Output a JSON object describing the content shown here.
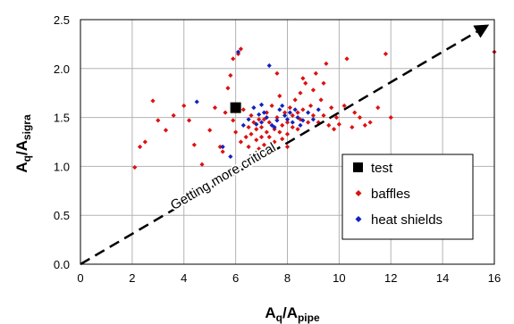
{
  "chart_data": {
    "type": "scatter",
    "xlim": [
      0,
      16
    ],
    "ylim": [
      0,
      2.5
    ],
    "x_ticks": [
      "0",
      "2",
      "4",
      "6",
      "8",
      "10",
      "12",
      "14",
      "16"
    ],
    "y_ticks": [
      "0.0",
      "0.5",
      "1.0",
      "1.5",
      "2.0",
      "2.5"
    ],
    "x_tick_values": [
      0,
      2,
      4,
      6,
      8,
      10,
      12,
      14,
      16
    ],
    "y_tick_values": [
      0,
      0.5,
      1.0,
      1.5,
      2.0,
      2.5
    ],
    "xlabel": {
      "main": "A",
      "sub1": "q",
      "sep": "/A",
      "sub2": "pipe"
    },
    "ylabel": {
      "main": "A",
      "sub1": "q",
      "sep": "/A",
      "sub2": "sigra"
    },
    "grid": true,
    "legend_position": "bottom-right",
    "annotation": {
      "text": "Getting more critical",
      "arrow_from": [
        0,
        0
      ],
      "arrow_to": [
        15.8,
        2.45
      ]
    },
    "series": [
      {
        "name": "test",
        "marker": "square",
        "color": "#000000",
        "points": [
          [
            6.0,
            1.6
          ]
        ]
      },
      {
        "name": "baffles",
        "marker": "diamond",
        "color": "#dd1111",
        "points": [
          [
            2.1,
            0.99
          ],
          [
            2.3,
            1.2
          ],
          [
            2.5,
            1.25
          ],
          [
            2.8,
            1.67
          ],
          [
            3.0,
            1.47
          ],
          [
            3.3,
            1.37
          ],
          [
            3.6,
            1.52
          ],
          [
            4.0,
            1.62
          ],
          [
            4.2,
            1.47
          ],
          [
            4.4,
            1.22
          ],
          [
            4.7,
            1.02
          ],
          [
            5.0,
            1.37
          ],
          [
            5.2,
            1.6
          ],
          [
            5.4,
            1.2
          ],
          [
            5.5,
            1.15
          ],
          [
            5.6,
            1.55
          ],
          [
            5.7,
            1.8
          ],
          [
            5.8,
            1.93
          ],
          [
            5.9,
            1.47
          ],
          [
            5.9,
            2.1
          ],
          [
            6.0,
            1.35
          ],
          [
            6.1,
            2.15
          ],
          [
            6.2,
            1.25
          ],
          [
            6.2,
            2.2
          ],
          [
            6.3,
            1.58
          ],
          [
            6.4,
            1.3
          ],
          [
            6.5,
            1.4
          ],
          [
            6.5,
            1.2
          ],
          [
            6.6,
            1.33
          ],
          [
            6.7,
            1.45
          ],
          [
            6.8,
            1.27
          ],
          [
            6.8,
            1.38
          ],
          [
            6.9,
            1.48
          ],
          [
            7.0,
            1.3
          ],
          [
            7.0,
            1.4
          ],
          [
            7.1,
            1.22
          ],
          [
            7.2,
            1.35
          ],
          [
            7.2,
            1.55
          ],
          [
            7.3,
            1.45
          ],
          [
            7.3,
            1.3
          ],
          [
            7.4,
            1.62
          ],
          [
            7.5,
            1.38
          ],
          [
            7.5,
            1.25
          ],
          [
            7.6,
            1.5
          ],
          [
            7.7,
            1.35
          ],
          [
            7.7,
            1.72
          ],
          [
            7.8,
            1.42
          ],
          [
            7.8,
            1.28
          ],
          [
            7.9,
            1.55
          ],
          [
            8.0,
            1.45
          ],
          [
            8.0,
            1.33
          ],
          [
            8.1,
            1.6
          ],
          [
            8.2,
            1.4
          ],
          [
            8.2,
            1.52
          ],
          [
            8.3,
            1.68
          ],
          [
            8.4,
            1.38
          ],
          [
            8.5,
            1.48
          ],
          [
            8.5,
            1.75
          ],
          [
            8.6,
            1.58
          ],
          [
            8.7,
            1.85
          ],
          [
            8.8,
            1.45
          ],
          [
            8.9,
            1.62
          ],
          [
            9.0,
            1.52
          ],
          [
            9.0,
            1.78
          ],
          [
            9.1,
            1.95
          ],
          [
            9.2,
            1.45
          ],
          [
            9.3,
            1.68
          ],
          [
            9.4,
            1.52
          ],
          [
            9.5,
            2.05
          ],
          [
            9.6,
            1.42
          ],
          [
            9.7,
            1.6
          ],
          [
            9.8,
            1.38
          ],
          [
            9.9,
            1.5
          ],
          [
            10.0,
            1.43
          ],
          [
            10.2,
            1.62
          ],
          [
            10.3,
            2.1
          ],
          [
            10.5,
            1.4
          ],
          [
            10.6,
            1.55
          ],
          [
            10.8,
            1.5
          ],
          [
            11.0,
            1.42
          ],
          [
            11.2,
            1.45
          ],
          [
            11.5,
            1.6
          ],
          [
            11.8,
            2.15
          ],
          [
            12.0,
            1.5
          ],
          [
            16.0,
            2.17
          ],
          [
            7.6,
            1.95
          ],
          [
            8.6,
            1.9
          ],
          [
            9.4,
            1.85
          ],
          [
            8.4,
            1.55
          ],
          [
            7.1,
            1.48
          ],
          [
            6.6,
            1.52
          ],
          [
            6.9,
            1.18
          ],
          [
            7.4,
            1.18
          ],
          [
            8.0,
            1.2
          ]
        ]
      },
      {
        "name": "heat shields",
        "marker": "diamond",
        "color": "#1122bb",
        "points": [
          [
            4.5,
            1.66
          ],
          [
            5.5,
            1.2
          ],
          [
            5.8,
            1.1
          ],
          [
            6.1,
            2.17
          ],
          [
            6.3,
            1.42
          ],
          [
            6.5,
            1.48
          ],
          [
            6.7,
            1.6
          ],
          [
            6.9,
            1.53
          ],
          [
            7.0,
            1.45
          ],
          [
            7.1,
            1.55
          ],
          [
            7.2,
            1.5
          ],
          [
            7.4,
            1.42
          ],
          [
            7.6,
            1.47
          ],
          [
            7.7,
            1.58
          ],
          [
            7.8,
            1.62
          ],
          [
            7.9,
            1.52
          ],
          [
            8.0,
            1.48
          ],
          [
            8.1,
            1.55
          ],
          [
            8.2,
            1.45
          ],
          [
            8.3,
            1.58
          ],
          [
            8.4,
            1.5
          ],
          [
            8.6,
            1.47
          ],
          [
            8.8,
            1.55
          ],
          [
            9.0,
            1.48
          ],
          [
            7.3,
            2.03
          ],
          [
            7.5,
            1.4
          ],
          [
            8.5,
            1.42
          ],
          [
            6.8,
            1.43
          ],
          [
            7.0,
            1.63
          ],
          [
            9.2,
            1.58
          ]
        ]
      }
    ]
  }
}
